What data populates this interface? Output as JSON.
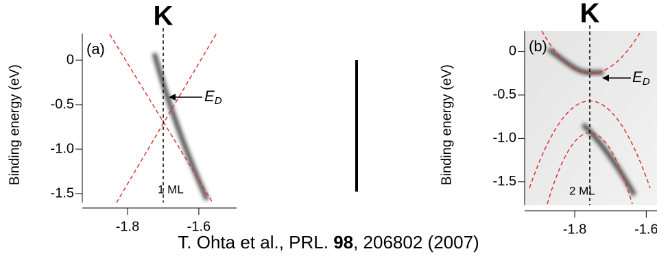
{
  "panels": [
    {
      "label": "(a)",
      "k_label": "K",
      "y_axis_label": "Binding energy (eV)",
      "ylim": [
        -1.6,
        0.3
      ],
      "yticks": [
        0,
        -0.5,
        {
          "value": -1,
          "label": "-1.0"
        },
        -1.5
      ],
      "xlim": [
        -1.927,
        -1.494
      ],
      "xticks": [
        -1.8,
        -1.6
      ],
      "dirac_label": {
        "main": "E",
        "sub": "D"
      },
      "layer_label": "1 ML"
    },
    {
      "label": "(b)",
      "k_label": "K",
      "y_axis_label": "Binding energy (eV)",
      "ylim": [
        -1.77,
        0.24
      ],
      "yticks": [
        0,
        -0.5,
        {
          "value": -1,
          "label": "-1.0"
        },
        -1.5
      ],
      "xlim": [
        -1.94,
        -1.57
      ],
      "xticks": [
        -1.8,
        -1.6
      ],
      "dirac_label": {
        "main": "E",
        "sub": "D"
      },
      "layer_label": "2 ML"
    }
  ],
  "caption": {
    "authors": "T. Ohta et al.,  PRL. ",
    "volume": "98",
    "rest": ", 206802 (2007)"
  }
}
